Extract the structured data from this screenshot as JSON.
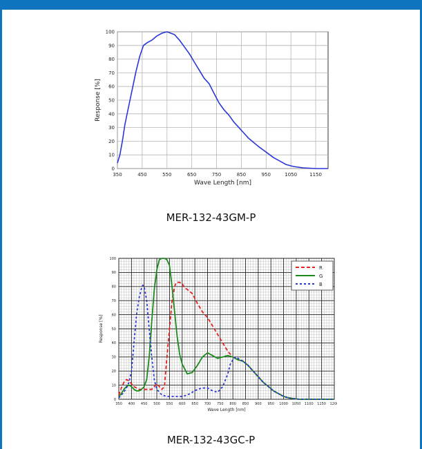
{
  "colors": {
    "frame": "#0e74bd"
  },
  "captions": {
    "mono": "MER-132-43GM-P",
    "color": "MER-132-43GC-P"
  },
  "chart_data": [
    {
      "type": "line",
      "xlabel": "Wave Length [nm]",
      "ylabel": "Response [%]",
      "xlim": [
        350,
        1200
      ],
      "ylim": [
        0,
        100
      ],
      "xticks": [
        350,
        450,
        550,
        650,
        750,
        850,
        950,
        1050,
        1150
      ],
      "yticks": [
        0,
        10,
        20,
        30,
        40,
        50,
        60,
        70,
        80,
        90,
        100
      ],
      "grid": true,
      "series": [
        {
          "color": "#2a36d6",
          "x": [
            350,
            360,
            370,
            380,
            395,
            410,
            425,
            440,
            455,
            470,
            490,
            510,
            530,
            550,
            565,
            580,
            600,
            620,
            640,
            660,
            680,
            700,
            720,
            740,
            760,
            780,
            800,
            820,
            840,
            860,
            880,
            900,
            920,
            950,
            980,
            1000,
            1030,
            1060,
            1100,
            1150,
            1200
          ],
          "y": [
            4,
            10,
            20,
            32,
            45,
            58,
            71,
            82,
            90,
            92,
            94,
            97,
            99,
            100,
            99,
            98,
            94,
            89,
            84,
            78,
            72,
            66,
            62,
            55,
            48,
            43,
            39,
            34,
            30,
            26,
            22,
            19,
            16,
            12,
            8,
            6,
            3,
            1.5,
            0.5,
            0,
            0
          ]
        }
      ]
    },
    {
      "type": "line",
      "xlabel": "Wave Length [nm]",
      "ylabel": "Response [%]",
      "xlim": [
        350,
        1200
      ],
      "ylim": [
        0,
        100
      ],
      "xticks": [
        350,
        400,
        450,
        500,
        550,
        600,
        650,
        700,
        750,
        800,
        850,
        900,
        950,
        1000,
        1050,
        1100,
        1150,
        1200
      ],
      "yticks": [
        0,
        10,
        20,
        30,
        40,
        50,
        60,
        70,
        80,
        90,
        100
      ],
      "grid": true,
      "legend": "top-right",
      "series": [
        {
          "name": "R",
          "color": "#e0211f",
          "x": [
            350,
            360,
            370,
            380,
            390,
            400,
            410,
            420,
            430,
            440,
            460,
            480,
            490,
            500,
            520,
            530,
            540,
            550,
            560,
            570,
            575,
            580,
            590,
            600,
            610,
            620,
            640,
            660,
            680,
            700,
            720,
            740,
            760,
            780,
            800,
            820,
            840,
            860,
            880,
            900,
            920,
            940,
            960,
            980,
            1000,
            1020,
            1040,
            1060,
            1080,
            1100,
            1150,
            1200
          ],
          "y": [
            3,
            8,
            12,
            14,
            13,
            11,
            9,
            8,
            7,
            7,
            7,
            7,
            9,
            11,
            7,
            9,
            30,
            50,
            70,
            80,
            82,
            83,
            83,
            82,
            79,
            78,
            75,
            68,
            62,
            58,
            52,
            46,
            40,
            34,
            30,
            28,
            27,
            24,
            20,
            16,
            12,
            9,
            6,
            4,
            2,
            1,
            0.5,
            0,
            0,
            0,
            0,
            0
          ]
        },
        {
          "name": "G",
          "color": "#1a8a1a",
          "x": [
            350,
            360,
            370,
            380,
            390,
            400,
            410,
            420,
            430,
            440,
            450,
            460,
            470,
            480,
            490,
            500,
            510,
            520,
            530,
            540,
            550,
            560,
            570,
            580,
            590,
            600,
            620,
            640,
            660,
            680,
            700,
            720,
            740,
            760,
            780,
            800,
            820,
            840,
            860,
            880,
            900,
            920,
            940,
            960,
            980,
            1000,
            1020,
            1040,
            1060,
            1100,
            1150,
            1200
          ],
          "y": [
            2,
            4,
            7,
            9,
            10,
            9,
            7,
            6,
            6,
            7,
            9,
            14,
            30,
            55,
            78,
            92,
            99,
            100,
            100,
            99,
            95,
            80,
            62,
            45,
            32,
            25,
            18,
            19,
            24,
            30,
            33,
            31,
            29,
            30,
            31,
            30,
            28,
            27,
            24,
            20,
            16,
            12,
            9,
            6,
            4,
            2,
            1,
            0.5,
            0,
            0,
            0,
            0
          ]
        },
        {
          "name": "B",
          "color": "#2a36d6",
          "x": [
            350,
            360,
            370,
            380,
            390,
            400,
            410,
            420,
            430,
            440,
            445,
            450,
            460,
            470,
            480,
            490,
            500,
            520,
            540,
            560,
            580,
            600,
            620,
            640,
            660,
            680,
            700,
            720,
            740,
            760,
            780,
            790,
            800,
            810,
            820,
            840,
            860,
            880,
            900,
            920,
            940,
            960,
            980,
            1000,
            1020,
            1040,
            1060,
            1100,
            1150,
            1200
          ],
          "y": [
            1,
            3,
            5,
            8,
            12,
            20,
            40,
            60,
            72,
            79,
            81,
            80,
            70,
            50,
            30,
            14,
            7,
            3,
            2,
            2,
            2,
            2,
            3,
            5,
            7,
            8,
            8,
            6,
            5,
            9,
            18,
            25,
            28,
            30,
            29,
            27,
            24,
            20,
            16,
            12,
            9,
            6,
            4,
            2,
            1,
            0.5,
            0,
            0,
            0,
            0
          ]
        }
      ]
    }
  ]
}
